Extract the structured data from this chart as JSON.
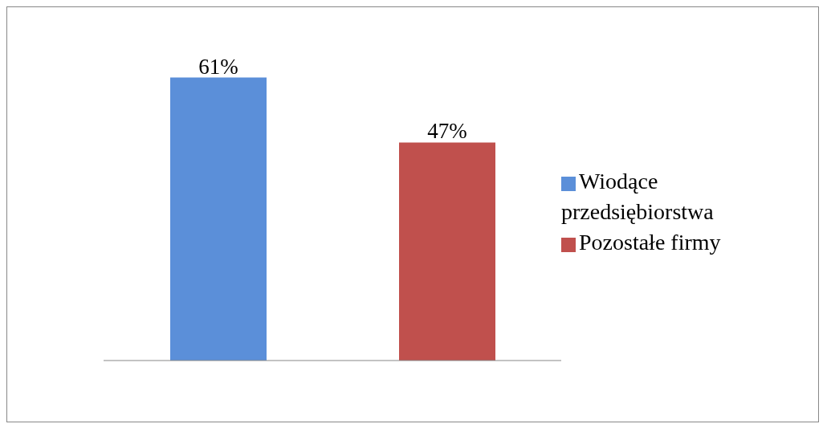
{
  "chart_data": {
    "type": "bar",
    "categories": [
      null,
      null
    ],
    "stacked": true,
    "series": [
      {
        "name": "Wiodące przedsiębiorstwa",
        "color": "#5b8fd9",
        "values": [
          61,
          null
        ],
        "value_labels": [
          "61%",
          null
        ]
      },
      {
        "name": "Pozostałe firmy",
        "color": "#c0504d",
        "values": [
          null,
          47
        ],
        "value_labels": [
          null,
          "47%"
        ]
      }
    ],
    "legend": "right",
    "grid": false
  }
}
